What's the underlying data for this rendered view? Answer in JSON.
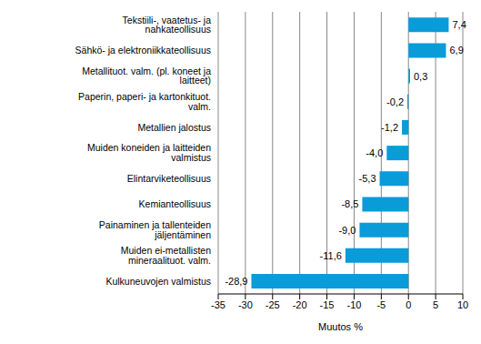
{
  "chart_data": {
    "type": "bar",
    "orientation": "horizontal",
    "x_label": "Muutos %",
    "categories": [
      "Tekstiili-, vaatetus- ja nahkateollisuus",
      "Sähkö- ja elektroniikkateollisuus",
      "Metallituot. valm. (pl. koneet ja laitteet)",
      "Paperin, paperi- ja kartonkituot. valm.",
      "Metallien jalostus",
      "Muiden koneiden ja laitteiden valmistus",
      "Elintarviketeollisuus",
      "Kemianteollisuus",
      "Painaminen ja tallenteiden jäljentäminen",
      "Muiden ei-metallisten mineraalituot. valm.",
      "Kulkuneuvojen valmistus"
    ],
    "values": [
      7.4,
      6.9,
      0.3,
      -0.2,
      -1.2,
      -4.0,
      -5.3,
      -8.5,
      -9.0,
      -11.6,
      -28.9
    ],
    "value_labels": [
      "7,4",
      "6,9",
      "0,3",
      "-0,2",
      "-1,2",
      "-4,0",
      "-5,3",
      "-8,5",
      "-9,0",
      "-11,6",
      "-28,9"
    ],
    "color": "#0a9bd9",
    "xlim": [
      -35,
      10
    ],
    "xticks": [
      -35,
      -30,
      -25,
      -20,
      -15,
      -10,
      -5,
      0,
      5,
      10
    ],
    "grid": true,
    "data_labels": true
  }
}
